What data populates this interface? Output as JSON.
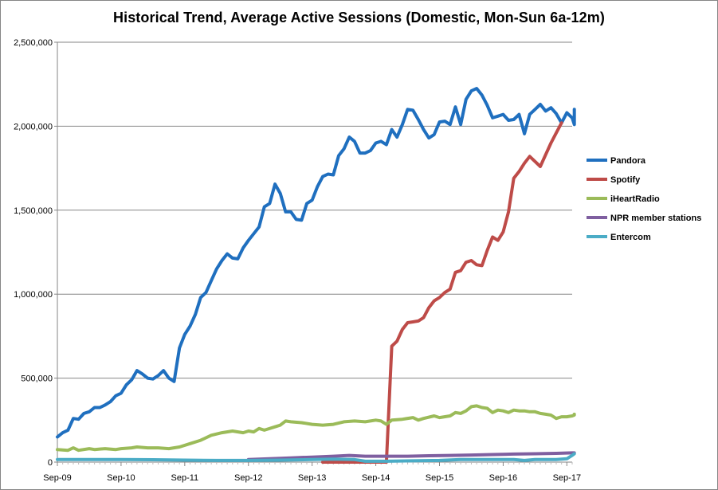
{
  "chart_data": {
    "type": "line",
    "title": "Historical Trend, Average Active Sessions (Domestic, Mon-Sun 6a-12m)",
    "xlabel": "",
    "ylabel": "",
    "ylim": [
      0,
      2500000
    ],
    "y_ticks": [
      0,
      500000,
      1000000,
      1500000,
      2000000,
      2500000
    ],
    "y_tick_labels": [
      "0",
      "500,000",
      "1,000,000",
      "1,500,000",
      "2,000,000",
      "2,500,000"
    ],
    "x_tick_labels": [
      "Sep-09",
      "Sep-10",
      "Sep-11",
      "Sep-12",
      "Sep-13",
      "Sep-14",
      "Sep-15",
      "Sep-16",
      "Sep-17"
    ],
    "x_tick_months": [
      0,
      12,
      24,
      36,
      48,
      60,
      72,
      84,
      96
    ],
    "xlim_months": [
      0,
      97
    ],
    "grid": "horizontal",
    "legend_position": "right",
    "series": [
      {
        "name": "Pandora",
        "color": "#1f6fbf",
        "points": [
          [
            0,
            150000
          ],
          [
            1,
            175000
          ],
          [
            2,
            190000
          ],
          [
            3,
            260000
          ],
          [
            4,
            255000
          ],
          [
            5,
            290000
          ],
          [
            6,
            300000
          ],
          [
            7,
            325000
          ],
          [
            8,
            325000
          ],
          [
            9,
            340000
          ],
          [
            10,
            360000
          ],
          [
            11,
            395000
          ],
          [
            12,
            410000
          ],
          [
            13,
            460000
          ],
          [
            14,
            490000
          ],
          [
            15,
            545000
          ],
          [
            16,
            525000
          ],
          [
            17,
            500000
          ],
          [
            18,
            495000
          ],
          [
            19,
            515000
          ],
          [
            20,
            545000
          ],
          [
            21,
            500000
          ],
          [
            22,
            480000
          ],
          [
            23,
            680000
          ],
          [
            24,
            760000
          ],
          [
            25,
            810000
          ],
          [
            26,
            880000
          ],
          [
            27,
            980000
          ],
          [
            28,
            1010000
          ],
          [
            29,
            1080000
          ],
          [
            30,
            1150000
          ],
          [
            31,
            1200000
          ],
          [
            32,
            1240000
          ],
          [
            33,
            1215000
          ],
          [
            34,
            1210000
          ],
          [
            35,
            1275000
          ],
          [
            36,
            1320000
          ],
          [
            37,
            1360000
          ],
          [
            38,
            1400000
          ],
          [
            39,
            1520000
          ],
          [
            40,
            1540000
          ],
          [
            41,
            1655000
          ],
          [
            42,
            1600000
          ],
          [
            43,
            1490000
          ],
          [
            44,
            1490000
          ],
          [
            45,
            1445000
          ],
          [
            46,
            1440000
          ],
          [
            47,
            1540000
          ],
          [
            48,
            1560000
          ],
          [
            49,
            1640000
          ],
          [
            50,
            1700000
          ],
          [
            51,
            1715000
          ],
          [
            52,
            1710000
          ],
          [
            53,
            1825000
          ],
          [
            54,
            1865000
          ],
          [
            55,
            1935000
          ],
          [
            56,
            1910000
          ],
          [
            57,
            1840000
          ],
          [
            58,
            1840000
          ],
          [
            59,
            1855000
          ],
          [
            60,
            1900000
          ],
          [
            61,
            1910000
          ],
          [
            62,
            1890000
          ],
          [
            63,
            1980000
          ],
          [
            64,
            1935000
          ],
          [
            65,
            2010000
          ],
          [
            66,
            2100000
          ],
          [
            67,
            2095000
          ],
          [
            68,
            2040000
          ],
          [
            69,
            1980000
          ],
          [
            70,
            1930000
          ],
          [
            71,
            1950000
          ],
          [
            72,
            2025000
          ],
          [
            73,
            2030000
          ],
          [
            74,
            2010000
          ],
          [
            75,
            2115000
          ],
          [
            76,
            2010000
          ],
          [
            77,
            2160000
          ],
          [
            78,
            2210000
          ],
          [
            79,
            2225000
          ],
          [
            80,
            2185000
          ],
          [
            81,
            2125000
          ],
          [
            82,
            2050000
          ],
          [
            83,
            2060000
          ],
          [
            84,
            2070000
          ],
          [
            85,
            2035000
          ],
          [
            86,
            2040000
          ],
          [
            87,
            2070000
          ],
          [
            88,
            1955000
          ],
          [
            89,
            2070000
          ],
          [
            90,
            2100000
          ],
          [
            91,
            2130000
          ],
          [
            92,
            2090000
          ],
          [
            93,
            2110000
          ],
          [
            94,
            2075000
          ],
          [
            95,
            2020000
          ],
          [
            96,
            2080000
          ],
          [
            97,
            2050000
          ],
          [
            98,
            2010000
          ],
          [
            99,
            2100000
          ]
        ]
      },
      {
        "name": "Spotify",
        "color": "#be4b48",
        "points": [
          [
            50,
            0
          ],
          [
            62,
            0
          ],
          [
            63,
            690000
          ],
          [
            64,
            720000
          ],
          [
            65,
            790000
          ],
          [
            66,
            830000
          ],
          [
            67,
            835000
          ],
          [
            68,
            840000
          ],
          [
            69,
            860000
          ],
          [
            70,
            920000
          ],
          [
            71,
            960000
          ],
          [
            72,
            980000
          ],
          [
            73,
            1010000
          ],
          [
            74,
            1030000
          ],
          [
            75,
            1130000
          ],
          [
            76,
            1140000
          ],
          [
            77,
            1190000
          ],
          [
            78,
            1200000
          ],
          [
            79,
            1175000
          ],
          [
            80,
            1170000
          ],
          [
            81,
            1260000
          ],
          [
            82,
            1340000
          ],
          [
            83,
            1320000
          ],
          [
            84,
            1370000
          ],
          [
            85,
            1490000
          ],
          [
            86,
            1690000
          ],
          [
            87,
            1730000
          ],
          [
            88,
            1780000
          ],
          [
            89,
            1820000
          ],
          [
            90,
            1790000
          ],
          [
            91,
            1760000
          ],
          [
            92,
            1830000
          ],
          [
            93,
            1900000
          ],
          [
            94,
            1960000
          ],
          [
            95,
            2020000
          ]
        ]
      },
      {
        "name": "iHeartRadio",
        "color": "#9bbb59",
        "points": [
          [
            0,
            75000
          ],
          [
            2,
            70000
          ],
          [
            3,
            85000
          ],
          [
            4,
            70000
          ],
          [
            6,
            80000
          ],
          [
            7,
            75000
          ],
          [
            9,
            80000
          ],
          [
            11,
            75000
          ],
          [
            12,
            80000
          ],
          [
            14,
            85000
          ],
          [
            15,
            90000
          ],
          [
            17,
            85000
          ],
          [
            19,
            85000
          ],
          [
            21,
            80000
          ],
          [
            23,
            90000
          ],
          [
            25,
            110000
          ],
          [
            27,
            130000
          ],
          [
            29,
            160000
          ],
          [
            31,
            175000
          ],
          [
            33,
            185000
          ],
          [
            35,
            175000
          ],
          [
            36,
            185000
          ],
          [
            37,
            180000
          ],
          [
            38,
            200000
          ],
          [
            39,
            190000
          ],
          [
            41,
            210000
          ],
          [
            42,
            220000
          ],
          [
            43,
            245000
          ],
          [
            44,
            240000
          ],
          [
            46,
            235000
          ],
          [
            48,
            225000
          ],
          [
            50,
            220000
          ],
          [
            52,
            225000
          ],
          [
            54,
            240000
          ],
          [
            56,
            245000
          ],
          [
            58,
            240000
          ],
          [
            60,
            250000
          ],
          [
            61,
            245000
          ],
          [
            62,
            225000
          ],
          [
            63,
            250000
          ],
          [
            65,
            255000
          ],
          [
            67,
            265000
          ],
          [
            68,
            250000
          ],
          [
            69,
            260000
          ],
          [
            71,
            275000
          ],
          [
            72,
            265000
          ],
          [
            74,
            275000
          ],
          [
            75,
            295000
          ],
          [
            76,
            290000
          ],
          [
            77,
            305000
          ],
          [
            78,
            330000
          ],
          [
            79,
            335000
          ],
          [
            80,
            325000
          ],
          [
            81,
            320000
          ],
          [
            82,
            295000
          ],
          [
            83,
            310000
          ],
          [
            84,
            305000
          ],
          [
            85,
            295000
          ],
          [
            86,
            310000
          ],
          [
            87,
            305000
          ],
          [
            88,
            305000
          ],
          [
            89,
            300000
          ],
          [
            90,
            300000
          ],
          [
            91,
            290000
          ],
          [
            92,
            285000
          ],
          [
            93,
            280000
          ],
          [
            94,
            260000
          ],
          [
            95,
            270000
          ],
          [
            96,
            270000
          ],
          [
            97,
            275000
          ],
          [
            98,
            280000
          ],
          [
            99,
            285000
          ]
        ]
      },
      {
        "name": "NPR member stations",
        "color": "#7f5fa0",
        "points": [
          [
            36,
            15000
          ],
          [
            40,
            20000
          ],
          [
            44,
            25000
          ],
          [
            48,
            30000
          ],
          [
            52,
            35000
          ],
          [
            55,
            40000
          ],
          [
            58,
            35000
          ],
          [
            62,
            35000
          ],
          [
            66,
            35000
          ],
          [
            70,
            38000
          ],
          [
            74,
            40000
          ],
          [
            78,
            42000
          ],
          [
            82,
            45000
          ],
          [
            86,
            48000
          ],
          [
            90,
            50000
          ],
          [
            94,
            52000
          ],
          [
            97,
            55000
          ],
          [
            99,
            55000
          ]
        ]
      },
      {
        "name": "Entercom",
        "color": "#4bacc6",
        "points": [
          [
            0,
            15000
          ],
          [
            6,
            15000
          ],
          [
            12,
            15000
          ],
          [
            18,
            14000
          ],
          [
            24,
            12000
          ],
          [
            30,
            10000
          ],
          [
            36,
            10000
          ],
          [
            42,
            12000
          ],
          [
            48,
            15000
          ],
          [
            52,
            18000
          ],
          [
            56,
            15000
          ],
          [
            58,
            5000
          ],
          [
            62,
            5000
          ],
          [
            72,
            10000
          ],
          [
            76,
            15000
          ],
          [
            80,
            15000
          ],
          [
            84,
            15000
          ],
          [
            86,
            15000
          ],
          [
            88,
            10000
          ],
          [
            90,
            15000
          ],
          [
            94,
            15000
          ],
          [
            96,
            20000
          ],
          [
            97,
            40000
          ],
          [
            98,
            50000
          ],
          [
            99,
            50000
          ]
        ]
      }
    ]
  }
}
